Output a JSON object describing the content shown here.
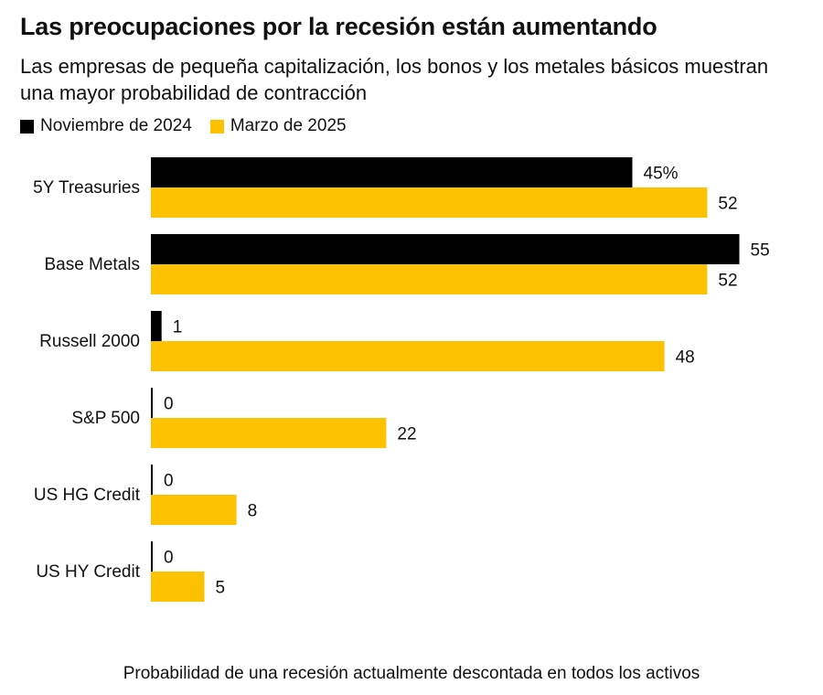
{
  "title": "Las preocupaciones por la recesión están aumentando",
  "subtitle": "Las empresas de pequeña capitalización, los bonos y los metales básicos muestran una mayor probabilidad de contracción",
  "caption": "Probabilidad de una recesión actualmente descontada en todos los activos",
  "colors": {
    "nov2024": "#000000",
    "mar2025": "#fcc200"
  },
  "chart_data": {
    "type": "bar",
    "orientation": "horizontal",
    "categories": [
      "5Y Treasuries",
      "Base Metals",
      "Russell 2000",
      "S&P 500",
      "US HG Credit",
      "US HY Credit"
    ],
    "series": [
      {
        "name": "Noviembre de 2024",
        "values": [
          45,
          55,
          1,
          0,
          0,
          0
        ],
        "labels": [
          "45%",
          "55",
          "1",
          "0",
          "0",
          "0"
        ]
      },
      {
        "name": "Marzo de 2025",
        "values": [
          52,
          52,
          48,
          22,
          8,
          5
        ],
        "labels": [
          "52",
          "52",
          "48",
          "22",
          "8",
          "5"
        ]
      }
    ],
    "legend": "top-left",
    "grid": false
  }
}
